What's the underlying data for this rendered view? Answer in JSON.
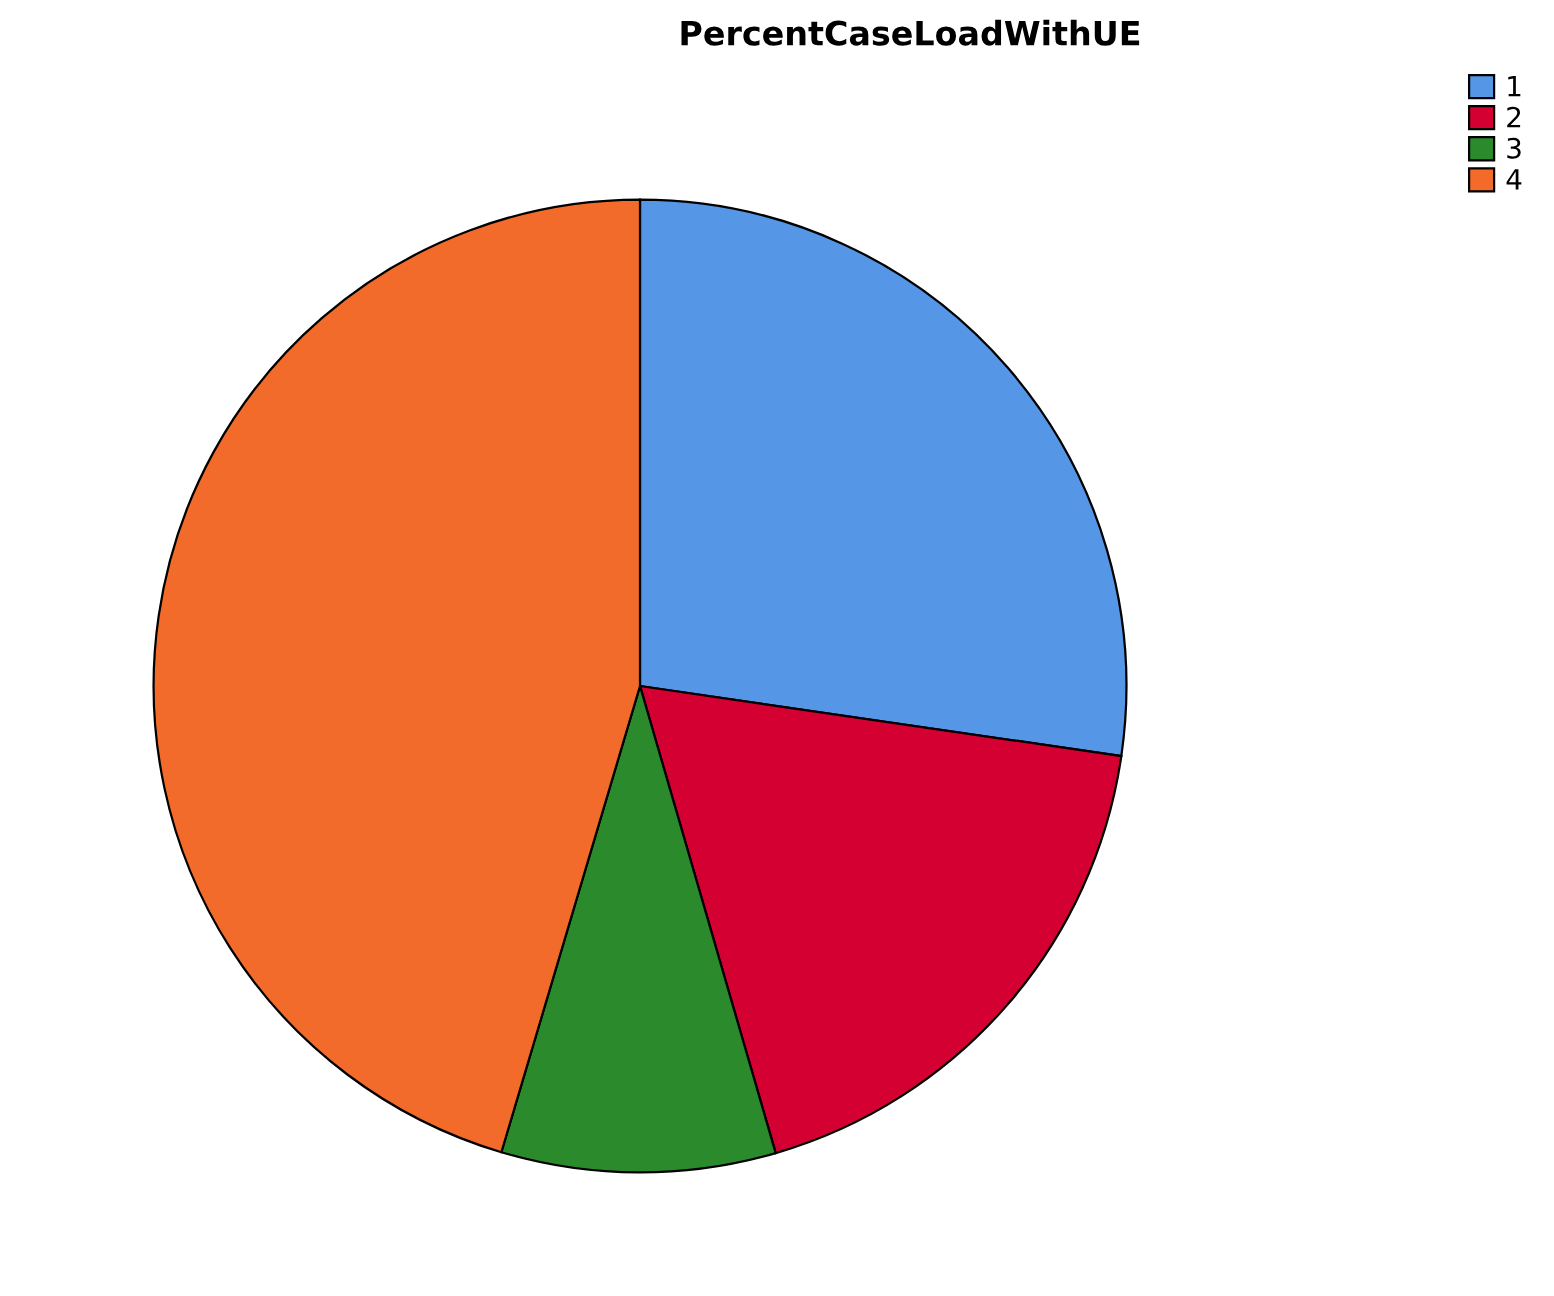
{
  "chart_data": {
    "type": "pie",
    "title": "PercentCaseLoadWithUE",
    "categories": [
      "1",
      "2",
      "3",
      "4"
    ],
    "values": [
      27.3,
      18.2,
      9.1,
      45.4
    ],
    "colors": [
      "#5596e6",
      "#d50032",
      "#2b8a2b",
      "#f26b2a"
    ],
    "legend": "top right"
  }
}
